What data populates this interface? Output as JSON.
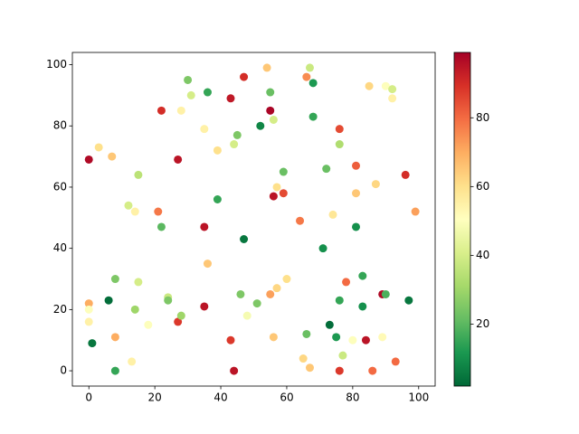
{
  "chart_data": {
    "type": "scatter",
    "x": [
      0,
      3,
      7,
      0,
      0,
      0,
      1,
      6,
      8,
      8,
      8,
      12,
      14,
      15,
      15,
      14,
      13,
      18,
      21,
      22,
      22,
      24,
      24,
      27,
      27,
      28,
      28,
      30,
      31,
      35,
      35,
      35,
      36,
      36,
      39,
      39,
      43,
      43,
      44,
      44,
      45,
      46,
      47,
      47,
      48,
      51,
      52,
      54,
      55,
      55,
      55,
      56,
      56,
      56,
      57,
      57,
      59,
      59,
      60,
      64,
      65,
      66,
      66,
      67,
      67,
      68,
      68,
      71,
      72,
      73,
      74,
      75,
      76,
      76,
      76,
      76,
      77,
      78,
      80,
      81,
      81,
      81,
      83,
      83,
      84,
      85,
      86,
      87,
      89,
      89,
      90,
      90,
      92,
      92,
      93,
      96,
      97,
      99
    ],
    "y": [
      69,
      73,
      70,
      22,
      20,
      16,
      9,
      23,
      30,
      11,
      0,
      54,
      52,
      64,
      29,
      20,
      3,
      15,
      52,
      85,
      47,
      24,
      23,
      69,
      16,
      85,
      18,
      95,
      90,
      79,
      47,
      21,
      91,
      35,
      72,
      56,
      89,
      10,
      74,
      0,
      77,
      25,
      96,
      43,
      18,
      22,
      80,
      99,
      25,
      91,
      85,
      82,
      57,
      11,
      60,
      27,
      58,
      65,
      30,
      49,
      4,
      96,
      12,
      99,
      1,
      94,
      83,
      40,
      66,
      15,
      51,
      11,
      74,
      79,
      23,
      0,
      5,
      29,
      10,
      67,
      58,
      47,
      31,
      21,
      10,
      93,
      0,
      61,
      25,
      11,
      93,
      25,
      92,
      89,
      3,
      64,
      23,
      52
    ],
    "c": [
      97,
      60,
      65,
      70,
      50,
      55,
      5,
      3,
      25,
      70,
      15,
      40,
      55,
      35,
      40,
      30,
      55,
      50,
      78,
      90,
      20,
      38,
      25,
      95,
      88,
      55,
      30,
      25,
      40,
      55,
      95,
      95,
      15,
      65,
      60,
      15,
      94,
      88,
      40,
      95,
      25,
      25,
      90,
      5,
      48,
      25,
      8,
      65,
      72,
      22,
      98,
      40,
      95,
      65,
      60,
      62,
      85,
      22,
      60,
      78,
      62,
      75,
      22,
      38,
      65,
      12,
      15,
      10,
      22,
      3,
      58,
      12,
      33,
      85,
      15,
      88,
      38,
      80,
      50,
      82,
      65,
      10,
      15,
      10,
      95,
      62,
      80,
      62,
      97,
      52,
      50,
      18,
      40,
      55,
      80,
      90,
      5,
      72
    ],
    "xlim": [
      -5,
      105
    ],
    "ylim": [
      -5,
      104
    ],
    "xticks": [
      0,
      20,
      40,
      60,
      80,
      100
    ],
    "yticks": [
      0,
      20,
      40,
      60,
      80,
      100
    ],
    "clim": [
      2,
      99
    ],
    "cticks": [
      20,
      40,
      60,
      80
    ],
    "colormap": [
      "#006837",
      "#1a9850",
      "#66bd63",
      "#a6d96a",
      "#d9ef8b",
      "#ffffbf",
      "#fee08b",
      "#fdae61",
      "#f46d43",
      "#d73027",
      "#a50026"
    ]
  }
}
